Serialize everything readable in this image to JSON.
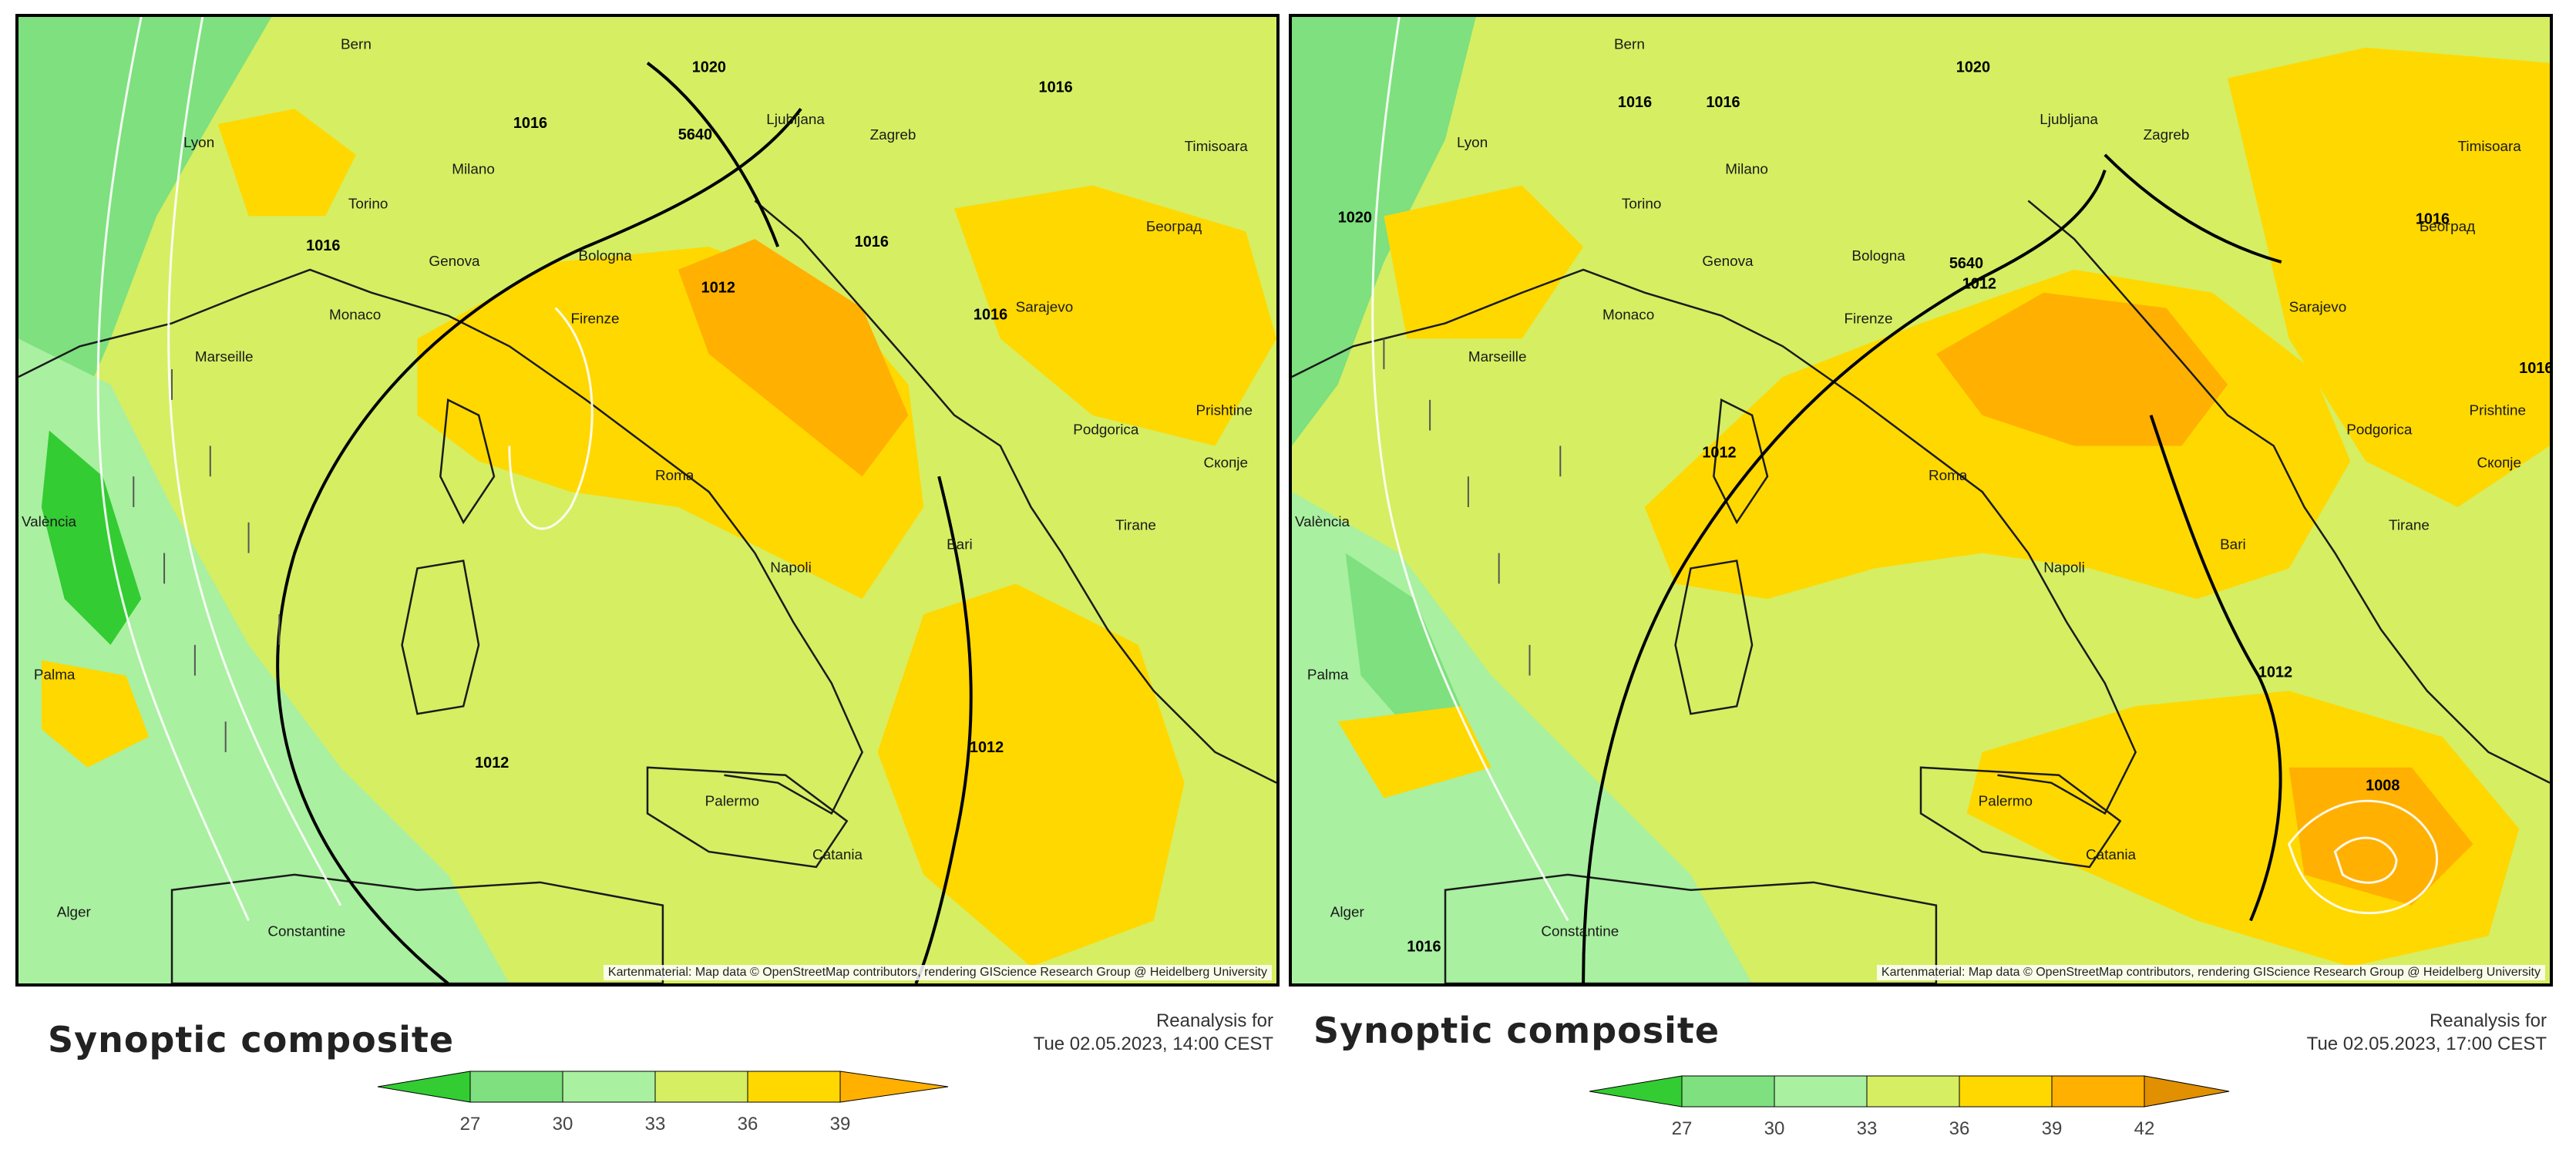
{
  "colors": {
    "green_dark": "#33cc33",
    "green_mid": "#7ee07e",
    "green_light": "#a9f0a0",
    "yellow_green": "#d6ee62",
    "yellow": "#ffd800",
    "orange": "#ffb000",
    "water_line": "#ffffff",
    "border_line": "#111111"
  },
  "panels": [
    {
      "title": "Synoptic composite",
      "reanalysis_line1": "Reanalysis for",
      "reanalysis_line2": "Tue 02.05.2023, 14:00 CEST",
      "attribution": "Kartenmaterial: Map data © OpenStreetMap contributors, rendering GIScience Research Group @ Heidelberg University",
      "colorbar_ticks": [
        "27",
        "30",
        "33",
        "36",
        "39"
      ],
      "cities": [
        "Bern",
        "Lyon",
        "Torino",
        "Milano",
        "Genova",
        "Bologna",
        "Monaco",
        "Marseille",
        "Firenze",
        "Ljubljana",
        "Zagreb",
        "Timisoara",
        "Београд",
        "Sarajevo",
        "Podgorica",
        "Prishtine",
        "Скопје",
        "Tirane",
        "Roma",
        "Napoli",
        "Bari",
        "Palma",
        "Palermo",
        "Catania",
        "Alger",
        "Constantine",
        "València"
      ],
      "isobars": [
        "1020",
        "1016",
        "1016",
        "5640",
        "1016",
        "1012",
        "1016",
        "1016",
        "1012",
        "1012"
      ]
    },
    {
      "title": "Synoptic composite",
      "reanalysis_line1": "Reanalysis for",
      "reanalysis_line2": "Tue 02.05.2023, 17:00 CEST",
      "attribution": "Kartenmaterial: Map data © OpenStreetMap contributors, rendering GIScience Research Group @ Heidelberg University",
      "colorbar_ticks": [
        "27",
        "30",
        "33",
        "36",
        "39",
        "42"
      ],
      "cities": [
        "Bern",
        "Lyon",
        "Torino",
        "Milano",
        "Genova",
        "Bologna",
        "Monaco",
        "Marseille",
        "Firenze",
        "Ljubljana",
        "Zagreb",
        "Timisoara",
        "Београд",
        "Sarajevo",
        "Podgorica",
        "Prishtine",
        "Скопје",
        "Tirane",
        "Roma",
        "Napoli",
        "Bari",
        "Palma",
        "Palermo",
        "Catania",
        "Alger",
        "Constantine",
        "València"
      ],
      "isobars": [
        "1020",
        "1016",
        "1020",
        "1016",
        "1016",
        "5640",
        "1012",
        "1016",
        "1012",
        "1012",
        "1008",
        "1016"
      ]
    }
  ]
}
